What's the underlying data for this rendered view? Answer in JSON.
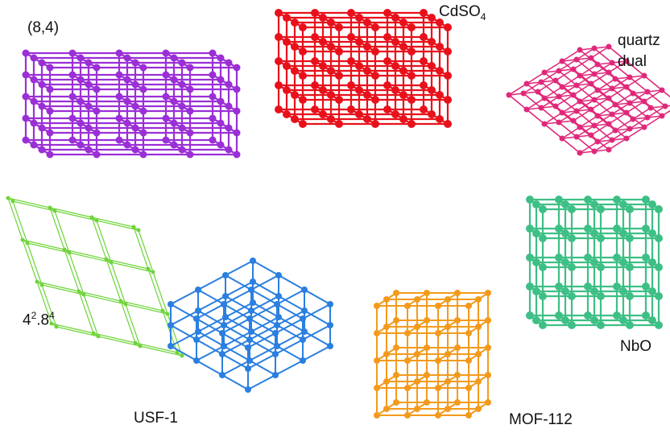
{
  "figure": {
    "background": "#ffffff",
    "nets": [
      {
        "key": "n84",
        "label": "(8,4)",
        "color": "#9b2fd6",
        "kind": "stack"
      },
      {
        "key": "cdso4",
        "label_main": "CdSO",
        "label_sub": "4",
        "color": "#e8111b",
        "kind": "cdso4"
      },
      {
        "key": "qtz",
        "label_line1": "quartz",
        "label_line2": "dual",
        "color": "#e0287a",
        "kind": "rhombo"
      },
      {
        "key": "n4284",
        "label_a": "4",
        "label_a_sup": "2",
        "label_b": ".8",
        "label_b_sup": "4",
        "color": "#6fd43a",
        "kind": "rhombo-thin"
      },
      {
        "key": "nbo",
        "label": "NbO",
        "color": "#3dbf85",
        "kind": "cube"
      },
      {
        "key": "usf1",
        "label": "USF-1",
        "color": "#2a7fe0",
        "kind": "hex"
      },
      {
        "key": "mof112",
        "label": "MOF-112",
        "color": "#f39a1c",
        "kind": "cube"
      }
    ]
  }
}
